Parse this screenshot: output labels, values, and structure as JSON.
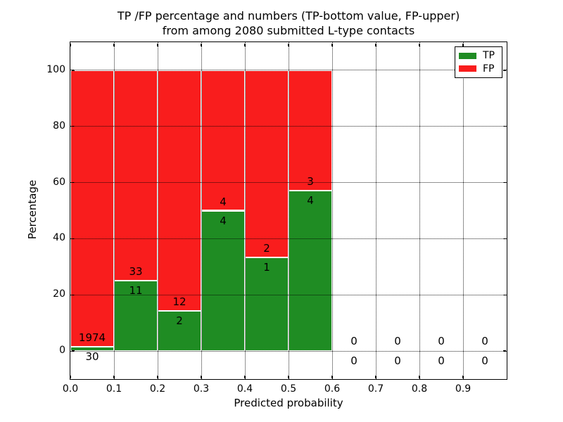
{
  "title": {
    "line1": "TP /FP percentage and numbers (TP-bottom value, FP-upper)",
    "line2": "from among 2080 submitted L-type contacts"
  },
  "axes": {
    "xlabel": "Predicted probability",
    "ylabel": "Percentage"
  },
  "legend": {
    "position": "upper right",
    "items": [
      {
        "label": "TP",
        "color": "#1f8c23"
      },
      {
        "label": "FP",
        "color": "#f91d1d"
      }
    ]
  },
  "chart_data": {
    "type": "bar",
    "stacked": true,
    "normalized": "percent_within_each_bin",
    "title": "TP /FP percentage and numbers (TP-bottom value, FP-upper) from among 2080 submitted L-type contacts",
    "xlabel": "Predicted probability",
    "ylabel": "Percentage",
    "xlim": [
      0.0,
      1.0
    ],
    "ylim": [
      -10,
      110
    ],
    "xtick_labels": [
      "0.0",
      "0.1",
      "0.2",
      "0.3",
      "0.4",
      "0.5",
      "0.6",
      "0.7",
      "0.8",
      "0.9"
    ],
    "ytick_labels": [
      "0",
      "20",
      "40",
      "60",
      "80",
      "100"
    ],
    "grid": true,
    "grid_style": "dotted",
    "bin_width": 0.1,
    "total_contacts": 2080,
    "series": [
      {
        "name": "TP",
        "color": "#1f8c23",
        "stack_position": "bottom"
      },
      {
        "name": "FP",
        "color": "#f91d1d",
        "stack_position": "top"
      }
    ],
    "bins": [
      {
        "x0": 0.0,
        "x1": 0.1,
        "tp": 30,
        "fp": 1974,
        "tp_pct": 1.5
      },
      {
        "x0": 0.1,
        "x1": 0.2,
        "tp": 11,
        "fp": 33,
        "tp_pct": 25.0
      },
      {
        "x0": 0.2,
        "x1": 0.3,
        "tp": 2,
        "fp": 12,
        "tp_pct": 14.3
      },
      {
        "x0": 0.3,
        "x1": 0.4,
        "tp": 4,
        "fp": 4,
        "tp_pct": 50.0
      },
      {
        "x0": 0.4,
        "x1": 0.5,
        "tp": 1,
        "fp": 2,
        "tp_pct": 33.3
      },
      {
        "x0": 0.5,
        "x1": 0.6,
        "tp": 4,
        "fp": 3,
        "tp_pct": 57.1
      },
      {
        "x0": 0.6,
        "x1": 0.7,
        "tp": 0,
        "fp": 0,
        "tp_pct": null
      },
      {
        "x0": 0.7,
        "x1": 0.8,
        "tp": 0,
        "fp": 0,
        "tp_pct": null
      },
      {
        "x0": 0.8,
        "x1": 0.9,
        "tp": 0,
        "fp": 0,
        "tp_pct": null
      },
      {
        "x0": 0.9,
        "x1": 1.0,
        "tp": 0,
        "fp": 0,
        "tp_pct": null
      }
    ]
  }
}
